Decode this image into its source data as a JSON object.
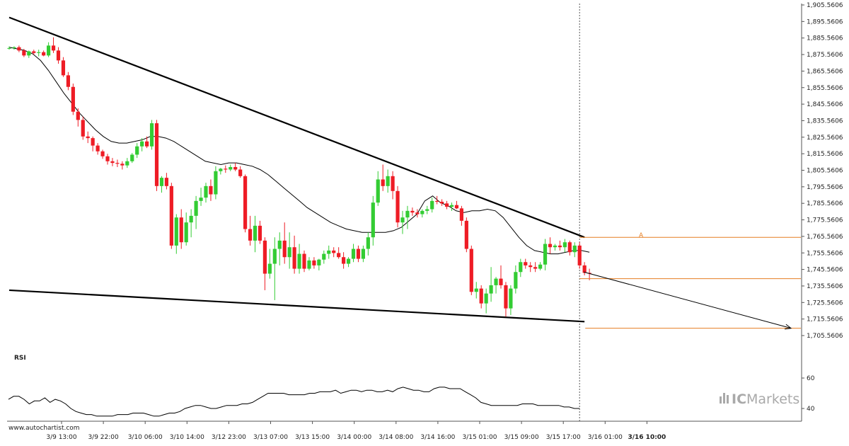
{
  "chart_data": {
    "type": "candlestick",
    "source_label": "www.autochartist.com",
    "indicator_label": "RSI",
    "brand": {
      "prefix": "IC",
      "suffix": "Markets",
      "color": "#a9a9a9"
    },
    "colors": {
      "up": "#33cc33",
      "down": "#ee1c25",
      "trendline": "#000000",
      "ma": "#000000",
      "level": "#e67e22",
      "grid": "#cccccc"
    },
    "price_axis": {
      "ticks": [
        "1,905.5606",
        "1,895.5606",
        "1,885.5606",
        "1,875.5606",
        "1,865.5606",
        "1,855.5606",
        "1,845.5606",
        "1,835.5606",
        "1,825.5606",
        "1,815.5606",
        "1,805.5606",
        "1,795.5606",
        "1,785.5606",
        "1,775.5606",
        "1,765.5606",
        "1,755.5606",
        "1,745.5606",
        "1,735.5606",
        "1,725.5606",
        "1,715.5606",
        "1,705.5606"
      ],
      "range": [
        1705.5606,
        1905.5606
      ]
    },
    "rsi_axis": {
      "ticks": [
        "60",
        "40"
      ],
      "range": [
        40,
        60
      ]
    },
    "time_axis": {
      "labels": [
        "3/9 13:00",
        "3/9 22:00",
        "3/10 06:00",
        "3/10 14:00",
        "3/12 23:00",
        "3/13 07:00",
        "3/13 15:00",
        "3/14 00:00",
        "3/14 08:00",
        "3/14 16:00",
        "3/15 01:00",
        "3/15 09:00",
        "3/15 17:00",
        "3/16 01:00",
        "3/16 10:00"
      ],
      "current_label": "3/16 10:00"
    },
    "candles": [
      {
        "o": 1879.5,
        "h": 1880.5,
        "l": 1878.5,
        "c": 1879.5
      },
      {
        "o": 1879.5,
        "h": 1880.5,
        "l": 1878.5,
        "c": 1880.0
      },
      {
        "o": 1880.0,
        "h": 1881.0,
        "l": 1877.0,
        "c": 1878.0
      },
      {
        "o": 1878.0,
        "h": 1879.0,
        "l": 1874.0,
        "c": 1875.0
      },
      {
        "o": 1875.0,
        "h": 1878.0,
        "l": 1873.5,
        "c": 1877.5
      },
      {
        "o": 1877.5,
        "h": 1878.5,
        "l": 1875.5,
        "c": 1876.5
      },
      {
        "o": 1876.5,
        "h": 1878.5,
        "l": 1874.5,
        "c": 1877.0
      },
      {
        "o": 1877.0,
        "h": 1878.0,
        "l": 1874.5,
        "c": 1875.0
      },
      {
        "o": 1875.0,
        "h": 1883.0,
        "l": 1874.0,
        "c": 1881.0
      },
      {
        "o": 1881.0,
        "h": 1886.0,
        "l": 1876.5,
        "c": 1878.0
      },
      {
        "o": 1878.0,
        "h": 1880.0,
        "l": 1870.0,
        "c": 1872.0
      },
      {
        "o": 1872.0,
        "h": 1874.0,
        "l": 1862.0,
        "c": 1863.0
      },
      {
        "o": 1863.0,
        "h": 1865.0,
        "l": 1854.0,
        "c": 1856.0
      },
      {
        "o": 1856.0,
        "h": 1858.0,
        "l": 1839.0,
        "c": 1841.0
      },
      {
        "o": 1841.0,
        "h": 1843.0,
        "l": 1832.0,
        "c": 1836.0
      },
      {
        "o": 1836.0,
        "h": 1838.0,
        "l": 1824.0,
        "c": 1826.0
      },
      {
        "o": 1826.0,
        "h": 1829.0,
        "l": 1822.0,
        "c": 1825.0
      },
      {
        "o": 1825.0,
        "h": 1826.0,
        "l": 1817.0,
        "c": 1820.5
      },
      {
        "o": 1820.5,
        "h": 1822.0,
        "l": 1815.0,
        "c": 1817.0
      },
      {
        "o": 1817.0,
        "h": 1818.0,
        "l": 1812.5,
        "c": 1814.0
      },
      {
        "o": 1814.0,
        "h": 1815.5,
        "l": 1809.0,
        "c": 1811.0
      },
      {
        "o": 1811.0,
        "h": 1813.0,
        "l": 1808.0,
        "c": 1810.0
      },
      {
        "o": 1810.0,
        "h": 1812.0,
        "l": 1807.5,
        "c": 1809.5
      },
      {
        "o": 1809.5,
        "h": 1811.0,
        "l": 1806.0,
        "c": 1808.5
      },
      {
        "o": 1808.5,
        "h": 1813.0,
        "l": 1807.0,
        "c": 1811.0
      },
      {
        "o": 1811.0,
        "h": 1816.0,
        "l": 1810.0,
        "c": 1815.0
      },
      {
        "o": 1815.0,
        "h": 1822.0,
        "l": 1813.0,
        "c": 1820.0
      },
      {
        "o": 1820.0,
        "h": 1825.0,
        "l": 1817.0,
        "c": 1823.0
      },
      {
        "o": 1823.0,
        "h": 1826.0,
        "l": 1819.0,
        "c": 1820.0
      },
      {
        "o": 1820.0,
        "h": 1836.0,
        "l": 1818.0,
        "c": 1834.0
      },
      {
        "o": 1834.0,
        "h": 1836.0,
        "l": 1793.0,
        "c": 1796.0
      },
      {
        "o": 1796.0,
        "h": 1802.0,
        "l": 1792.0,
        "c": 1801.0
      },
      {
        "o": 1801.0,
        "h": 1804.0,
        "l": 1794.0,
        "c": 1796.0
      },
      {
        "o": 1796.0,
        "h": 1798.0,
        "l": 1758.0,
        "c": 1760.0
      },
      {
        "o": 1760.0,
        "h": 1779.0,
        "l": 1755.0,
        "c": 1777.0
      },
      {
        "o": 1777.0,
        "h": 1782.0,
        "l": 1758.0,
        "c": 1762.0
      },
      {
        "o": 1762.0,
        "h": 1780.0,
        "l": 1760.0,
        "c": 1774.0
      },
      {
        "o": 1774.0,
        "h": 1782.0,
        "l": 1765.0,
        "c": 1778.0
      },
      {
        "o": 1778.0,
        "h": 1790.0,
        "l": 1770.0,
        "c": 1787.0
      },
      {
        "o": 1787.0,
        "h": 1795.0,
        "l": 1784.0,
        "c": 1789.0
      },
      {
        "o": 1789.0,
        "h": 1798.0,
        "l": 1786.0,
        "c": 1796.0
      },
      {
        "o": 1796.0,
        "h": 1800.0,
        "l": 1787.0,
        "c": 1791.0
      },
      {
        "o": 1791.0,
        "h": 1808.0,
        "l": 1788.0,
        "c": 1805.0
      },
      {
        "o": 1805.0,
        "h": 1807.0,
        "l": 1803.0,
        "c": 1806.5
      },
      {
        "o": 1806.5,
        "h": 1808.5,
        "l": 1804.0,
        "c": 1806.0
      },
      {
        "o": 1806.0,
        "h": 1809.0,
        "l": 1805.0,
        "c": 1807.5
      },
      {
        "o": 1807.5,
        "h": 1810.0,
        "l": 1805.0,
        "c": 1806.0
      },
      {
        "o": 1806.0,
        "h": 1808.0,
        "l": 1801.0,
        "c": 1802.0
      },
      {
        "o": 1802.0,
        "h": 1803.0,
        "l": 1768.0,
        "c": 1770.0
      },
      {
        "o": 1770.0,
        "h": 1778.0,
        "l": 1760.0,
        "c": 1763.0
      },
      {
        "o": 1763.0,
        "h": 1778.0,
        "l": 1756.0,
        "c": 1772.0
      },
      {
        "o": 1772.0,
        "h": 1775.0,
        "l": 1761.0,
        "c": 1763.0
      },
      {
        "o": 1763.0,
        "h": 1765.0,
        "l": 1733.0,
        "c": 1743.0
      },
      {
        "o": 1743.0,
        "h": 1758.0,
        "l": 1740.0,
        "c": 1749.0
      },
      {
        "o": 1749.0,
        "h": 1765.0,
        "l": 1727.0,
        "c": 1758.0
      },
      {
        "o": 1758.0,
        "h": 1768.0,
        "l": 1748.0,
        "c": 1763.0
      },
      {
        "o": 1763.0,
        "h": 1774.0,
        "l": 1749.0,
        "c": 1753.0
      },
      {
        "o": 1753.0,
        "h": 1768.0,
        "l": 1746.0,
        "c": 1759.0
      },
      {
        "o": 1759.0,
        "h": 1766.0,
        "l": 1743.0,
        "c": 1746.0
      },
      {
        "o": 1746.0,
        "h": 1761.0,
        "l": 1743.0,
        "c": 1755.0
      },
      {
        "o": 1755.0,
        "h": 1757.0,
        "l": 1744.0,
        "c": 1746.0
      },
      {
        "o": 1746.0,
        "h": 1753.0,
        "l": 1745.0,
        "c": 1751.0
      },
      {
        "o": 1751.0,
        "h": 1753.0,
        "l": 1746.0,
        "c": 1748.0
      },
      {
        "o": 1748.0,
        "h": 1752.0,
        "l": 1745.0,
        "c": 1751.5
      },
      {
        "o": 1751.5,
        "h": 1757.0,
        "l": 1749.0,
        "c": 1755.0
      },
      {
        "o": 1755.0,
        "h": 1760.0,
        "l": 1752.0,
        "c": 1757.0
      },
      {
        "o": 1757.0,
        "h": 1759.0,
        "l": 1753.0,
        "c": 1755.5
      },
      {
        "o": 1755.5,
        "h": 1759.0,
        "l": 1752.0,
        "c": 1753.0
      },
      {
        "o": 1753.0,
        "h": 1756.0,
        "l": 1746.0,
        "c": 1749.0
      },
      {
        "o": 1749.0,
        "h": 1753.0,
        "l": 1747.0,
        "c": 1752.0
      },
      {
        "o": 1752.0,
        "h": 1761.0,
        "l": 1750.0,
        "c": 1758.0
      },
      {
        "o": 1758.0,
        "h": 1760.0,
        "l": 1750.0,
        "c": 1752.0
      },
      {
        "o": 1752.0,
        "h": 1760.0,
        "l": 1750.0,
        "c": 1758.0
      },
      {
        "o": 1758.0,
        "h": 1768.0,
        "l": 1754.0,
        "c": 1765.0
      },
      {
        "o": 1765.0,
        "h": 1790.0,
        "l": 1760.0,
        "c": 1786.0
      },
      {
        "o": 1786.0,
        "h": 1805.0,
        "l": 1784.0,
        "c": 1800.0
      },
      {
        "o": 1800.0,
        "h": 1809.0,
        "l": 1793.0,
        "c": 1796.0
      },
      {
        "o": 1796.0,
        "h": 1806.0,
        "l": 1792.0,
        "c": 1802.0
      },
      {
        "o": 1802.0,
        "h": 1805.0,
        "l": 1788.0,
        "c": 1793.0
      },
      {
        "o": 1793.0,
        "h": 1796.0,
        "l": 1771.0,
        "c": 1774.0
      },
      {
        "o": 1774.0,
        "h": 1781.0,
        "l": 1767.0,
        "c": 1777.0
      },
      {
        "o": 1777.0,
        "h": 1784.0,
        "l": 1770.0,
        "c": 1781.0
      },
      {
        "o": 1781.0,
        "h": 1783.0,
        "l": 1778.0,
        "c": 1780.0
      },
      {
        "o": 1780.0,
        "h": 1782.0,
        "l": 1777.0,
        "c": 1779.0
      },
      {
        "o": 1779.0,
        "h": 1782.0,
        "l": 1777.0,
        "c": 1781.0
      },
      {
        "o": 1781.0,
        "h": 1784.0,
        "l": 1779.0,
        "c": 1782.0
      },
      {
        "o": 1782.0,
        "h": 1789.0,
        "l": 1780.0,
        "c": 1787.0
      },
      {
        "o": 1787.0,
        "h": 1790.0,
        "l": 1785.0,
        "c": 1786.5
      },
      {
        "o": 1786.5,
        "h": 1788.0,
        "l": 1784.0,
        "c": 1785.5
      },
      {
        "o": 1785.5,
        "h": 1787.0,
        "l": 1782.0,
        "c": 1783.5
      },
      {
        "o": 1783.5,
        "h": 1786.0,
        "l": 1781.0,
        "c": 1784.5
      },
      {
        "o": 1784.5,
        "h": 1787.0,
        "l": 1782.0,
        "c": 1782.5
      },
      {
        "o": 1782.5,
        "h": 1784.0,
        "l": 1772.0,
        "c": 1775.0
      },
      {
        "o": 1775.0,
        "h": 1777.0,
        "l": 1756.0,
        "c": 1758.0
      },
      {
        "o": 1758.0,
        "h": 1760.0,
        "l": 1730.0,
        "c": 1732.0
      },
      {
        "o": 1732.0,
        "h": 1738.0,
        "l": 1728.0,
        "c": 1734.0
      },
      {
        "o": 1734.0,
        "h": 1736.0,
        "l": 1722.0,
        "c": 1725.0
      },
      {
        "o": 1725.0,
        "h": 1734.0,
        "l": 1719.0,
        "c": 1731.0
      },
      {
        "o": 1731.0,
        "h": 1747.0,
        "l": 1726.0,
        "c": 1736.0
      },
      {
        "o": 1736.0,
        "h": 1741.0,
        "l": 1731.0,
        "c": 1740.0
      },
      {
        "o": 1740.0,
        "h": 1748.0,
        "l": 1734.0,
        "c": 1736.0
      },
      {
        "o": 1736.0,
        "h": 1738.0,
        "l": 1717.0,
        "c": 1722.0
      },
      {
        "o": 1722.0,
        "h": 1736.0,
        "l": 1718.0,
        "c": 1734.0
      },
      {
        "o": 1734.0,
        "h": 1748.0,
        "l": 1731.0,
        "c": 1744.0
      },
      {
        "o": 1744.0,
        "h": 1752.0,
        "l": 1741.0,
        "c": 1750.0
      },
      {
        "o": 1750.0,
        "h": 1752.0,
        "l": 1746.0,
        "c": 1748.0
      },
      {
        "o": 1748.0,
        "h": 1750.0,
        "l": 1744.0,
        "c": 1747.0
      },
      {
        "o": 1747.0,
        "h": 1750.0,
        "l": 1744.0,
        "c": 1746.0
      },
      {
        "o": 1746.0,
        "h": 1750.0,
        "l": 1745.0,
        "c": 1748.5
      },
      {
        "o": 1748.5,
        "h": 1764.0,
        "l": 1745.0,
        "c": 1761.0
      },
      {
        "o": 1761.0,
        "h": 1765.0,
        "l": 1755.0,
        "c": 1759.0
      },
      {
        "o": 1759.0,
        "h": 1761.0,
        "l": 1757.0,
        "c": 1760.0
      },
      {
        "o": 1760.0,
        "h": 1763.0,
        "l": 1757.0,
        "c": 1759.0
      },
      {
        "o": 1759.0,
        "h": 1764.0,
        "l": 1756.0,
        "c": 1762.0
      },
      {
        "o": 1762.0,
        "h": 1763.0,
        "l": 1754.0,
        "c": 1756.0
      },
      {
        "o": 1756.0,
        "h": 1762.0,
        "l": 1753.0,
        "c": 1760.0
      },
      {
        "o": 1760.0,
        "h": 1762.0,
        "l": 1746.0,
        "c": 1748.0
      },
      {
        "o": 1748.0,
        "h": 1750.0,
        "l": 1742.0,
        "c": 1743.5
      },
      {
        "o": 1743.5,
        "h": 1746.0,
        "l": 1739.0,
        "c": 1743.0
      }
    ],
    "ma_line": [
      1880,
      1879,
      1878,
      1876,
      1872,
      1866,
      1859,
      1852,
      1846,
      1840,
      1835,
      1830,
      1826,
      1823,
      1822,
      1822,
      1823,
      1824,
      1826,
      1826,
      1825,
      1823,
      1820,
      1817,
      1814,
      1811,
      1810,
      1809,
      1810,
      1810,
      1809,
      1808,
      1806,
      1803,
      1799,
      1795,
      1791,
      1787,
      1783,
      1780,
      1777,
      1774,
      1772,
      1770,
      1769,
      1768,
      1768,
      1768,
      1768,
      1769,
      1771,
      1775,
      1779,
      1787,
      1790,
      1786,
      1784,
      1781,
      1780,
      1781,
      1781,
      1782,
      1781,
      1777,
      1771,
      1765,
      1760,
      1757,
      1756,
      1755,
      1755,
      1756,
      1757,
      1757,
      1756
    ],
    "ma_x_start": 0,
    "rsi": [
      46,
      48,
      48,
      46,
      43,
      45,
      45,
      47,
      44,
      46,
      45,
      43,
      40,
      38,
      37,
      36,
      36,
      35,
      35,
      35,
      35,
      36,
      36,
      36,
      37,
      37,
      37,
      36,
      35,
      35,
      36,
      37,
      37,
      38,
      40,
      41,
      42,
      42,
      41,
      40,
      40,
      41,
      42,
      42,
      42,
      43,
      43,
      44,
      46,
      48,
      50,
      50,
      50,
      50,
      49,
      49,
      49,
      49,
      50,
      50,
      51,
      51,
      51,
      52,
      50,
      51,
      52,
      52,
      51,
      52,
      52,
      51,
      51,
      52,
      51,
      53,
      54,
      53,
      52,
      52,
      51,
      51,
      53,
      54,
      54,
      53,
      53,
      53,
      51,
      49,
      47,
      44,
      43,
      42,
      42,
      42,
      42,
      42,
      42,
      43,
      43,
      43,
      42,
      42,
      42,
      42,
      42,
      41,
      41,
      40,
      40
    ],
    "trendlines": {
      "upper": {
        "from": [
          0,
          1898
        ],
        "to_index": 117,
        "to_price": 1765
      },
      "lower": {
        "from": [
          0,
          1733
        ],
        "to_index": 117,
        "to_price": 1714
      }
    },
    "levels": [
      1765,
      1740,
      1710
    ],
    "forecast_arrow": {
      "from_price": 1744,
      "to_price": 1710
    },
    "point_label": "A"
  }
}
